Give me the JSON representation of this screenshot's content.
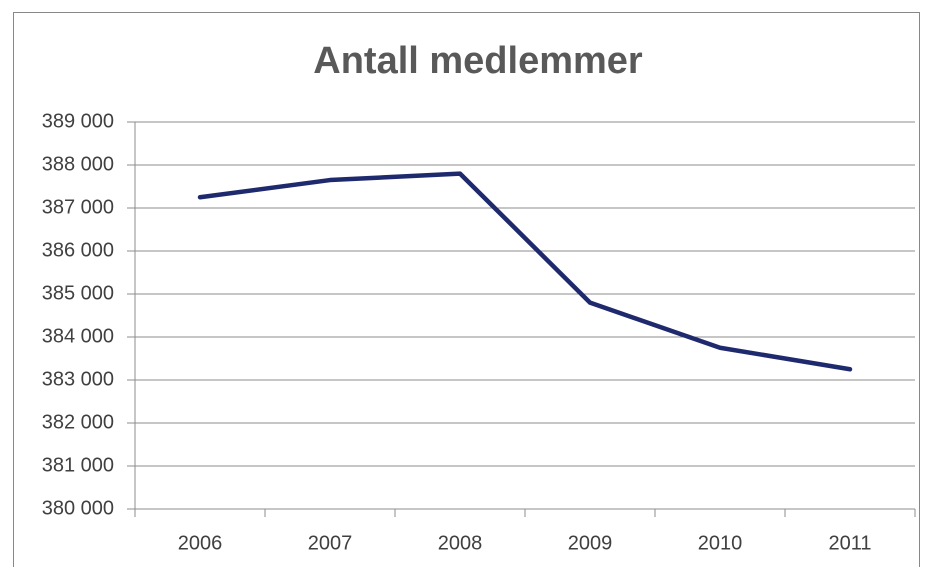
{
  "chart_data": {
    "type": "line",
    "title": "Antall medlemmer",
    "categories": [
      "2006",
      "2007",
      "2008",
      "2009",
      "2010",
      "2011"
    ],
    "series": [
      {
        "name": "Antall medlemmer",
        "color": "#1f2a6e",
        "values": [
          387250,
          387650,
          387800,
          384800,
          383750,
          383250
        ]
      }
    ],
    "ylim": [
      380000,
      389000
    ],
    "yticks": [
      {
        "value": 380000,
        "label": "380 000"
      },
      {
        "value": 381000,
        "label": "381 000"
      },
      {
        "value": 382000,
        "label": "382 000"
      },
      {
        "value": 383000,
        "label": "383 000"
      },
      {
        "value": 384000,
        "label": "384 000"
      },
      {
        "value": 385000,
        "label": "385 000"
      },
      {
        "value": 386000,
        "label": "386 000"
      },
      {
        "value": 387000,
        "label": "387 000"
      },
      {
        "value": 388000,
        "label": "388 000"
      },
      {
        "value": 389000,
        "label": "389 000"
      }
    ],
    "grid": true
  }
}
